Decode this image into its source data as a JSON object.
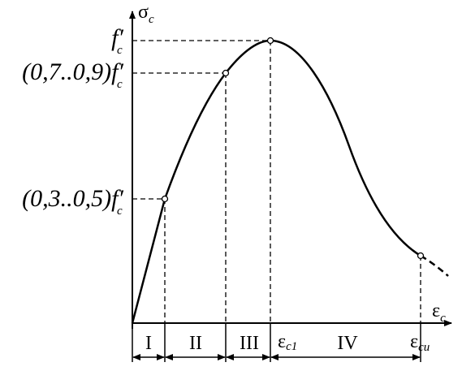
{
  "axis_labels": {
    "stress": {
      "symbol": "σ",
      "subscript": "c"
    },
    "strain": {
      "symbol": "ε",
      "subscript": "c"
    }
  },
  "stress_levels": [
    {
      "symbol": "f′",
      "subscript": "c"
    },
    {
      "prefix": "(0,7..0,9)",
      "symbol": "f′",
      "subscript": "c"
    },
    {
      "prefix": "(0,3..0,5)",
      "symbol": "f′",
      "subscript": "c"
    }
  ],
  "strain_points": [
    {
      "symbol": "ε",
      "subscript": "c1"
    },
    {
      "symbol": "ε",
      "subscript": "cu"
    }
  ],
  "stages": [
    "I",
    "II",
    "III",
    "IV"
  ]
}
